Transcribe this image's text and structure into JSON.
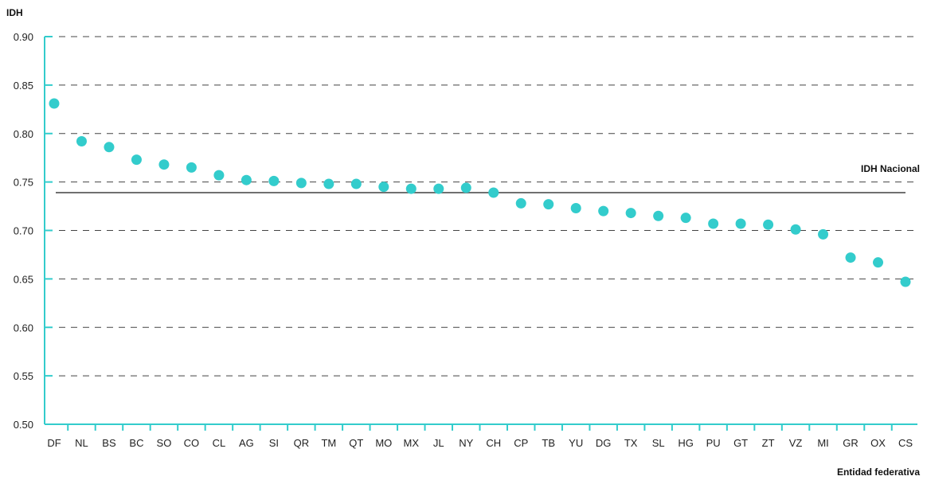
{
  "chart_data": {
    "type": "scatter",
    "ylabel": "IDH",
    "xlabel": "Entidad federativa",
    "ylim": [
      0.5,
      0.9
    ],
    "yticks": [
      "0.50",
      "0.55",
      "0.60",
      "0.65",
      "0.70",
      "0.75",
      "0.80",
      "0.85",
      "0.90"
    ],
    "grid": "horizontal dashed",
    "categories": [
      "DF",
      "NL",
      "BS",
      "BC",
      "SO",
      "CO",
      "CL",
      "AG",
      "SI",
      "QR",
      "TM",
      "QT",
      "MO",
      "MX",
      "JL",
      "NY",
      "CH",
      "CP",
      "TB",
      "YU",
      "DG",
      "TX",
      "SL",
      "HG",
      "PU",
      "GT",
      "ZT",
      "VZ",
      "MI",
      "GR",
      "OX",
      "CS"
    ],
    "values": [
      0.831,
      0.792,
      0.786,
      0.773,
      0.768,
      0.765,
      0.757,
      0.752,
      0.751,
      0.749,
      0.748,
      0.748,
      0.745,
      0.743,
      0.743,
      0.744,
      0.739,
      0.728,
      0.727,
      0.723,
      0.72,
      0.718,
      0.715,
      0.713,
      0.707,
      0.707,
      0.706,
      0.701,
      0.696,
      0.672,
      0.667,
      0.647
    ],
    "reference_line": {
      "label": "IDH Nacional",
      "value": 0.739
    },
    "colors": {
      "point": "#33CCCC",
      "axis": "#33CCCC",
      "reference": "#707070",
      "grid": "#444444"
    }
  }
}
